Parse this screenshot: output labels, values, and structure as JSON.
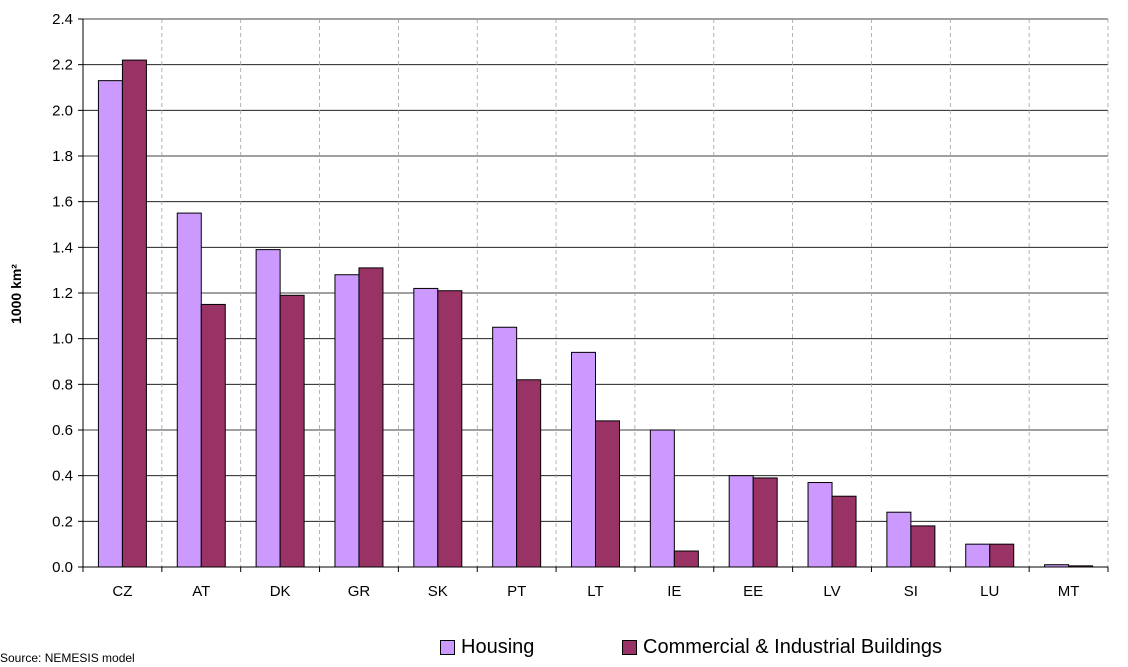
{
  "chart_data": {
    "type": "bar",
    "categories": [
      "CZ",
      "AT",
      "DK",
      "GR",
      "SK",
      "PT",
      "LT",
      "IE",
      "EE",
      "LV",
      "SI",
      "LU",
      "MT"
    ],
    "series": [
      {
        "name": "Housing",
        "color": "#cc99ff",
        "values": [
          2.13,
          1.55,
          1.39,
          1.28,
          1.22,
          1.05,
          0.94,
          0.6,
          0.4,
          0.37,
          0.24,
          0.1,
          0.01
        ]
      },
      {
        "name": "Commercial & Industrial Buildings",
        "color": "#993366",
        "values": [
          2.22,
          1.15,
          1.19,
          1.31,
          1.21,
          0.82,
          0.64,
          0.07,
          0.39,
          0.31,
          0.18,
          0.1,
          0.005
        ]
      }
    ],
    "ylabel": "1000 km²",
    "ylim": [
      0,
      2.4
    ],
    "yticks": [
      "0.0",
      "0.2",
      "0.4",
      "0.6",
      "0.8",
      "1.0",
      "1.2",
      "1.4",
      "1.6",
      "1.8",
      "2.0",
      "2.2",
      "2.4"
    ],
    "grid": {
      "horizontal": "solid",
      "vertical": "dashed"
    },
    "legend": "bottom"
  },
  "source": "Source: NEMESIS model"
}
